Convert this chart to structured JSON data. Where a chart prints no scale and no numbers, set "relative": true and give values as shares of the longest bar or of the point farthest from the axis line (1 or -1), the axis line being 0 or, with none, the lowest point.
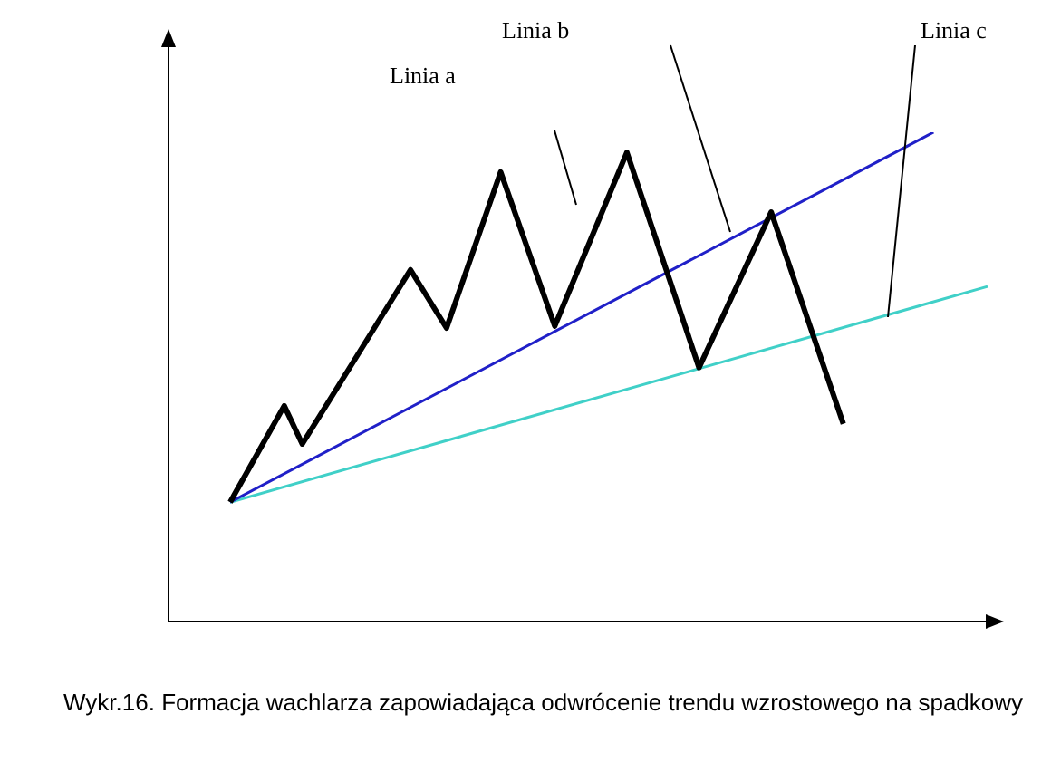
{
  "chart_data": {
    "type": "line",
    "relative": true,
    "legend": false,
    "marker": "none",
    "categories": [
      null,
      null,
      null,
      null,
      null,
      null,
      null,
      null,
      null,
      null,
      null,
      null,
      null,
      null,
      null,
      null,
      null,
      null,
      null,
      null,
      null,
      null,
      null,
      null,
      null,
      null,
      null,
      null,
      null,
      null,
      null,
      null,
      null,
      null,
      null,
      null,
      null,
      null,
      null,
      null,
      null,
      null,
      null
    ],
    "series": [
      {
        "color": "#000000",
        "values": [
          0.244,
          null,
          null,
          0.441,
          0.363,
          null,
          null,
          null,
          null,
          null,
          0.719,
          null,
          0.6,
          null,
          null,
          0.919,
          null,
          null,
          0.604,
          null,
          null,
          null,
          0.959,
          null,
          null,
          null,
          0.519,
          null,
          null,
          null,
          0.837,
          null,
          null,
          null,
          0.404,
          null,
          null,
          null,
          null,
          null,
          null,
          null,
          null
        ]
      },
      {
        "color": "#2020c8",
        "values": [
          0.244,
          null,
          null,
          null,
          null,
          null,
          null,
          null,
          null,
          null,
          null,
          null,
          null,
          null,
          null,
          null,
          null,
          null,
          null,
          null,
          null,
          null,
          null,
          null,
          null,
          null,
          null,
          null,
          null,
          null,
          null,
          null,
          null,
          null,
          null,
          null,
          null,
          null,
          null,
          1.0,
          null,
          null,
          null
        ]
      },
      {
        "color": "#40d0c8",
        "values": [
          0.244,
          null,
          null,
          null,
          null,
          null,
          null,
          null,
          null,
          null,
          null,
          null,
          null,
          null,
          null,
          null,
          null,
          null,
          null,
          null,
          null,
          null,
          null,
          null,
          null,
          null,
          null,
          null,
          null,
          null,
          null,
          null,
          null,
          null,
          null,
          null,
          null,
          null,
          null,
          null,
          null,
          null,
          0.685
        ]
      }
    ],
    "annotations": [
      "Linia a",
      "Linia b",
      "Linia c",
      "Wykr.16. Formacja wachlarza zapowiadająca odwrócenie trendu wzrostowego na spadkowy"
    ]
  }
}
